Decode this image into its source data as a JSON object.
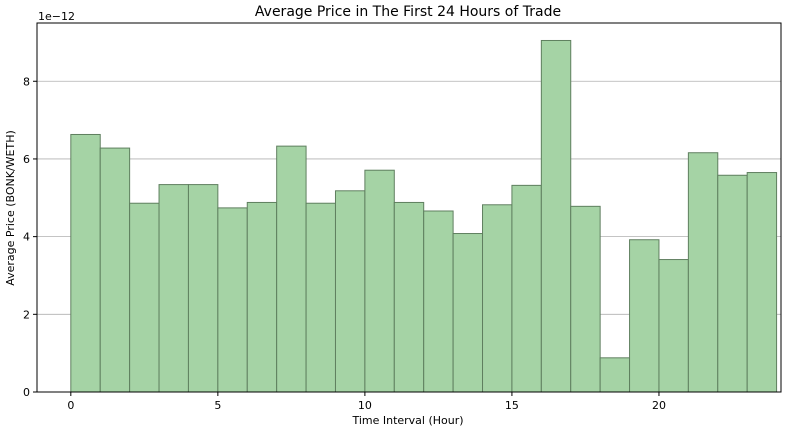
{
  "chart_data": {
    "type": "bar",
    "title": "Average Price in The First 24 Hours of Trade",
    "xlabel": "Time Interval (Hour)",
    "ylabel": "Average Price (BONK/WETH)",
    "y_multiplier_label": "1e−12",
    "x": [
      0,
      1,
      2,
      3,
      4,
      5,
      6,
      7,
      8,
      9,
      10,
      11,
      12,
      13,
      14,
      15,
      16,
      17,
      18,
      19,
      20,
      21,
      22,
      23
    ],
    "values": [
      6.63,
      6.28,
      4.86,
      5.34,
      5.34,
      4.74,
      4.88,
      6.33,
      4.86,
      5.18,
      5.71,
      4.88,
      4.66,
      4.08,
      4.82,
      5.32,
      9.05,
      4.78,
      0.88,
      3.92,
      3.41,
      6.16,
      5.58,
      5.65
    ],
    "value_scale": 1e-12,
    "bar_width": 1,
    "xlim": [
      -1.15,
      24.15
    ],
    "ylim": [
      0,
      9.5
    ],
    "xticks": [
      0,
      5,
      10,
      15,
      20
    ],
    "yticks": [
      0,
      2,
      4,
      6,
      8
    ],
    "grid": "y",
    "legend": "none",
    "colors": {
      "bar_fill": "#a5d3a5",
      "bar_edge": "#5f7f5f",
      "grid": "#b0b0b0"
    }
  }
}
